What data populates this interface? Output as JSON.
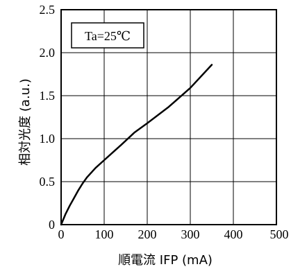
{
  "chart_data": {
    "type": "line",
    "xlabel": "順電流 IFP (mA)",
    "ylabel": "相対光度 (a.u.)",
    "annotation": "Ta=25℃",
    "xlim": [
      0,
      500
    ],
    "ylim": [
      0,
      2.5
    ],
    "x_ticks": [
      "0",
      "100",
      "200",
      "300",
      "400",
      "500"
    ],
    "y_ticks": [
      "0",
      "0.5",
      "1.0",
      "1.5",
      "2.0",
      "2.5"
    ],
    "grid": true,
    "series": [
      {
        "x": [
          0,
          10,
          20,
          30,
          40,
          50,
          60,
          80,
          100,
          120,
          140,
          170,
          200,
          250,
          300,
          350
        ],
        "y": [
          0,
          0.12,
          0.22,
          0.31,
          0.4,
          0.48,
          0.55,
          0.66,
          0.75,
          0.84,
          0.93,
          1.07,
          1.18,
          1.37,
          1.59,
          1.86
        ]
      }
    ],
    "colors": {
      "line": "#000000",
      "grid": "#000000"
    }
  }
}
